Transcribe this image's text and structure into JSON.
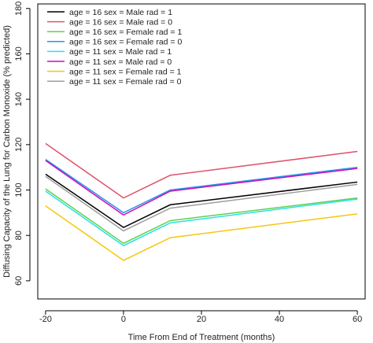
{
  "chart_data": {
    "type": "line",
    "xlabel": "Time From End of Treatment (months)",
    "ylabel": "Diffusing Capacity of the Lung for Carbon Monoxide (% predicted)",
    "xlim": [
      -22,
      62
    ],
    "ylim": [
      52,
      182
    ],
    "xticks": [
      -20,
      0,
      20,
      40,
      60
    ],
    "xtick_labels": [
      "-20",
      "0",
      "20",
      "40",
      "60"
    ],
    "yticks": [
      60,
      80,
      100,
      120,
      140,
      160,
      180
    ],
    "ytick_labels": [
      "60",
      "80",
      "100",
      "120",
      "140",
      "160",
      "180"
    ],
    "grid": false,
    "legend_position": "top-left",
    "x": [
      -20,
      0,
      12,
      60
    ],
    "series": [
      {
        "name": "age = 16 sex = Male rad = 1",
        "color": "#000000",
        "values": [
          107,
          83.5,
          93.5,
          103.5
        ]
      },
      {
        "name": "age = 16 sex = Male rad = 0",
        "color": "#df536b",
        "values": [
          120.5,
          96.5,
          106.5,
          117
        ]
      },
      {
        "name": "age = 16 sex = Female rad = 1",
        "color": "#61d04f",
        "values": [
          100.5,
          76.5,
          86.5,
          96.5
        ]
      },
      {
        "name": "age = 16 sex = Female rad = 0",
        "color": "#2297e6",
        "values": [
          113.5,
          90,
          100,
          110
        ]
      },
      {
        "name": "age = 11 sex = Male rad = 1",
        "color": "#28e2e5",
        "values": [
          99.5,
          75.5,
          85.5,
          96
        ]
      },
      {
        "name": "age = 11 sex = Male rad = 0",
        "color": "#cd0bbc",
        "values": [
          113,
          89,
          99.5,
          109.5
        ]
      },
      {
        "name": "age = 11 sex = Female rad = 1",
        "color": "#f5c710",
        "values": [
          93,
          69,
          79,
          89.5
        ]
      },
      {
        "name": "age = 11 sex = Female rad = 0",
        "color": "#9e9e9e",
        "values": [
          106,
          82,
          92,
          102.5
        ]
      }
    ]
  }
}
